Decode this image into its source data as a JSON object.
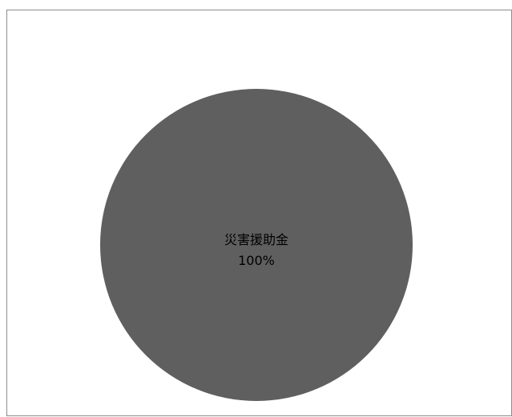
{
  "chart_data": {
    "type": "pie",
    "title": "",
    "slices": [
      {
        "category": "災害援助金",
        "value": 100,
        "percent_label": "100%"
      }
    ],
    "colors": [
      "#5f5f5f"
    ],
    "legend": "none"
  }
}
